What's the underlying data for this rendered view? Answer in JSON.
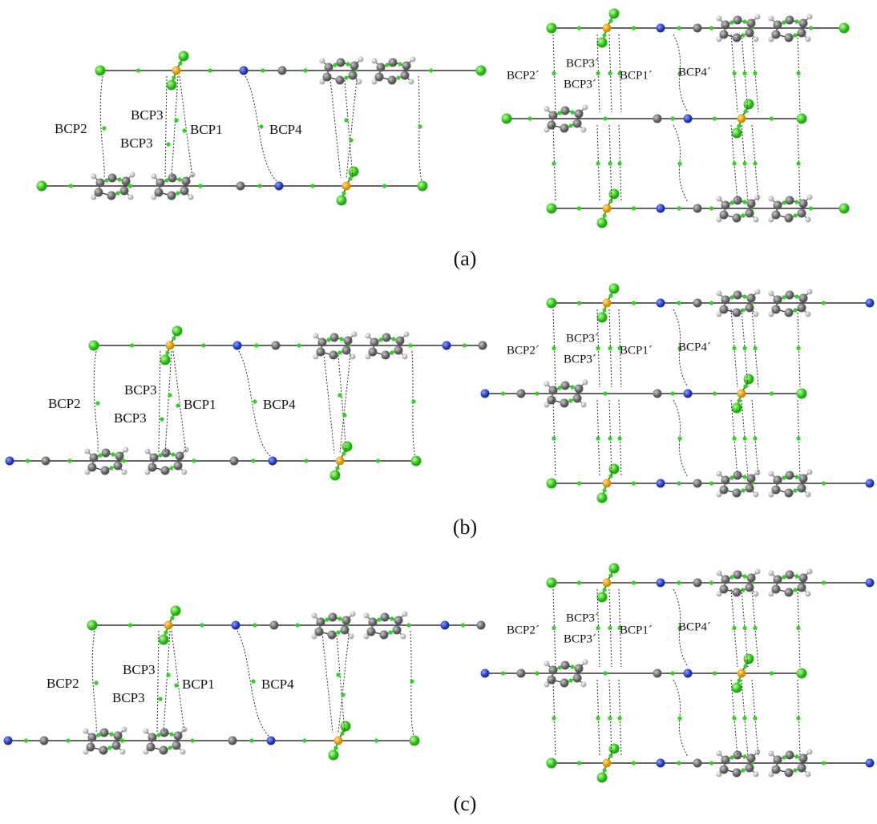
{
  "panels": [
    {
      "caption": "(a)",
      "left_labels": [
        "BCP2",
        "BCP3",
        "BCP3",
        "BCP1",
        "BCP4"
      ],
      "right_labels": [
        "BCP2´",
        "BCP3´",
        "BCP3´",
        "BCP1´",
        "BCP4´"
      ]
    },
    {
      "caption": "(b)",
      "left_labels": [
        "BCP2",
        "BCP3",
        "BCP3",
        "BCP1",
        "BCP4"
      ],
      "right_labels": [
        "BCP2´",
        "BCP3´",
        "BCP3´",
        "BCP1´",
        "BCP4´"
      ]
    },
    {
      "caption": "(c)",
      "left_labels": [
        "BCP2",
        "BCP3",
        "BCP3",
        "BCP1",
        "BCP4"
      ],
      "right_labels": [
        "BCP2´",
        "BCP3´",
        "BCP3´",
        "BCP1´",
        "BCP4´"
      ]
    }
  ]
}
